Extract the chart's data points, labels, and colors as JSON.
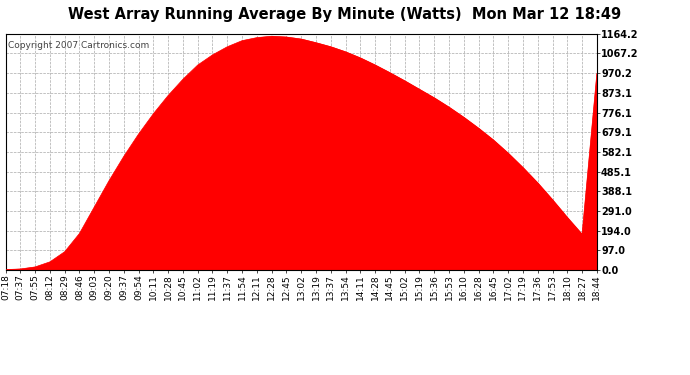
{
  "title": "West Array Running Average By Minute (Watts)  Mon Mar 12 18:49",
  "copyright": "Copyright 2007 Cartronics.com",
  "fill_color": "#FF0000",
  "background_color": "#FFFFFF",
  "grid_color": "#AAAAAA",
  "y_max": 1164.2,
  "y_min": 0.0,
  "y_ticks": [
    0.0,
    97.0,
    194.0,
    291.0,
    388.1,
    485.1,
    582.1,
    679.1,
    776.1,
    873.1,
    970.2,
    1067.2,
    1164.2
  ],
  "x_labels": [
    "07:18",
    "07:37",
    "07:55",
    "08:12",
    "08:29",
    "08:46",
    "09:03",
    "09:20",
    "09:37",
    "09:54",
    "10:11",
    "10:28",
    "10:45",
    "11:02",
    "11:19",
    "11:37",
    "11:54",
    "12:11",
    "12:28",
    "12:45",
    "13:02",
    "13:19",
    "13:37",
    "13:54",
    "14:11",
    "14:28",
    "14:45",
    "15:02",
    "15:19",
    "15:36",
    "15:53",
    "16:10",
    "16:28",
    "16:45",
    "17:02",
    "17:19",
    "17:36",
    "17:53",
    "18:10",
    "18:27",
    "18:44"
  ],
  "raw_y": [
    2,
    5,
    15,
    40,
    90,
    180,
    310,
    440,
    560,
    670,
    770,
    860,
    940,
    1010,
    1060,
    1100,
    1130,
    1145,
    1152,
    1148,
    1138,
    1120,
    1100,
    1075,
    1045,
    1010,
    972,
    932,
    890,
    848,
    802,
    752,
    698,
    640,
    575,
    504,
    428,
    345,
    258,
    175,
    968
  ]
}
